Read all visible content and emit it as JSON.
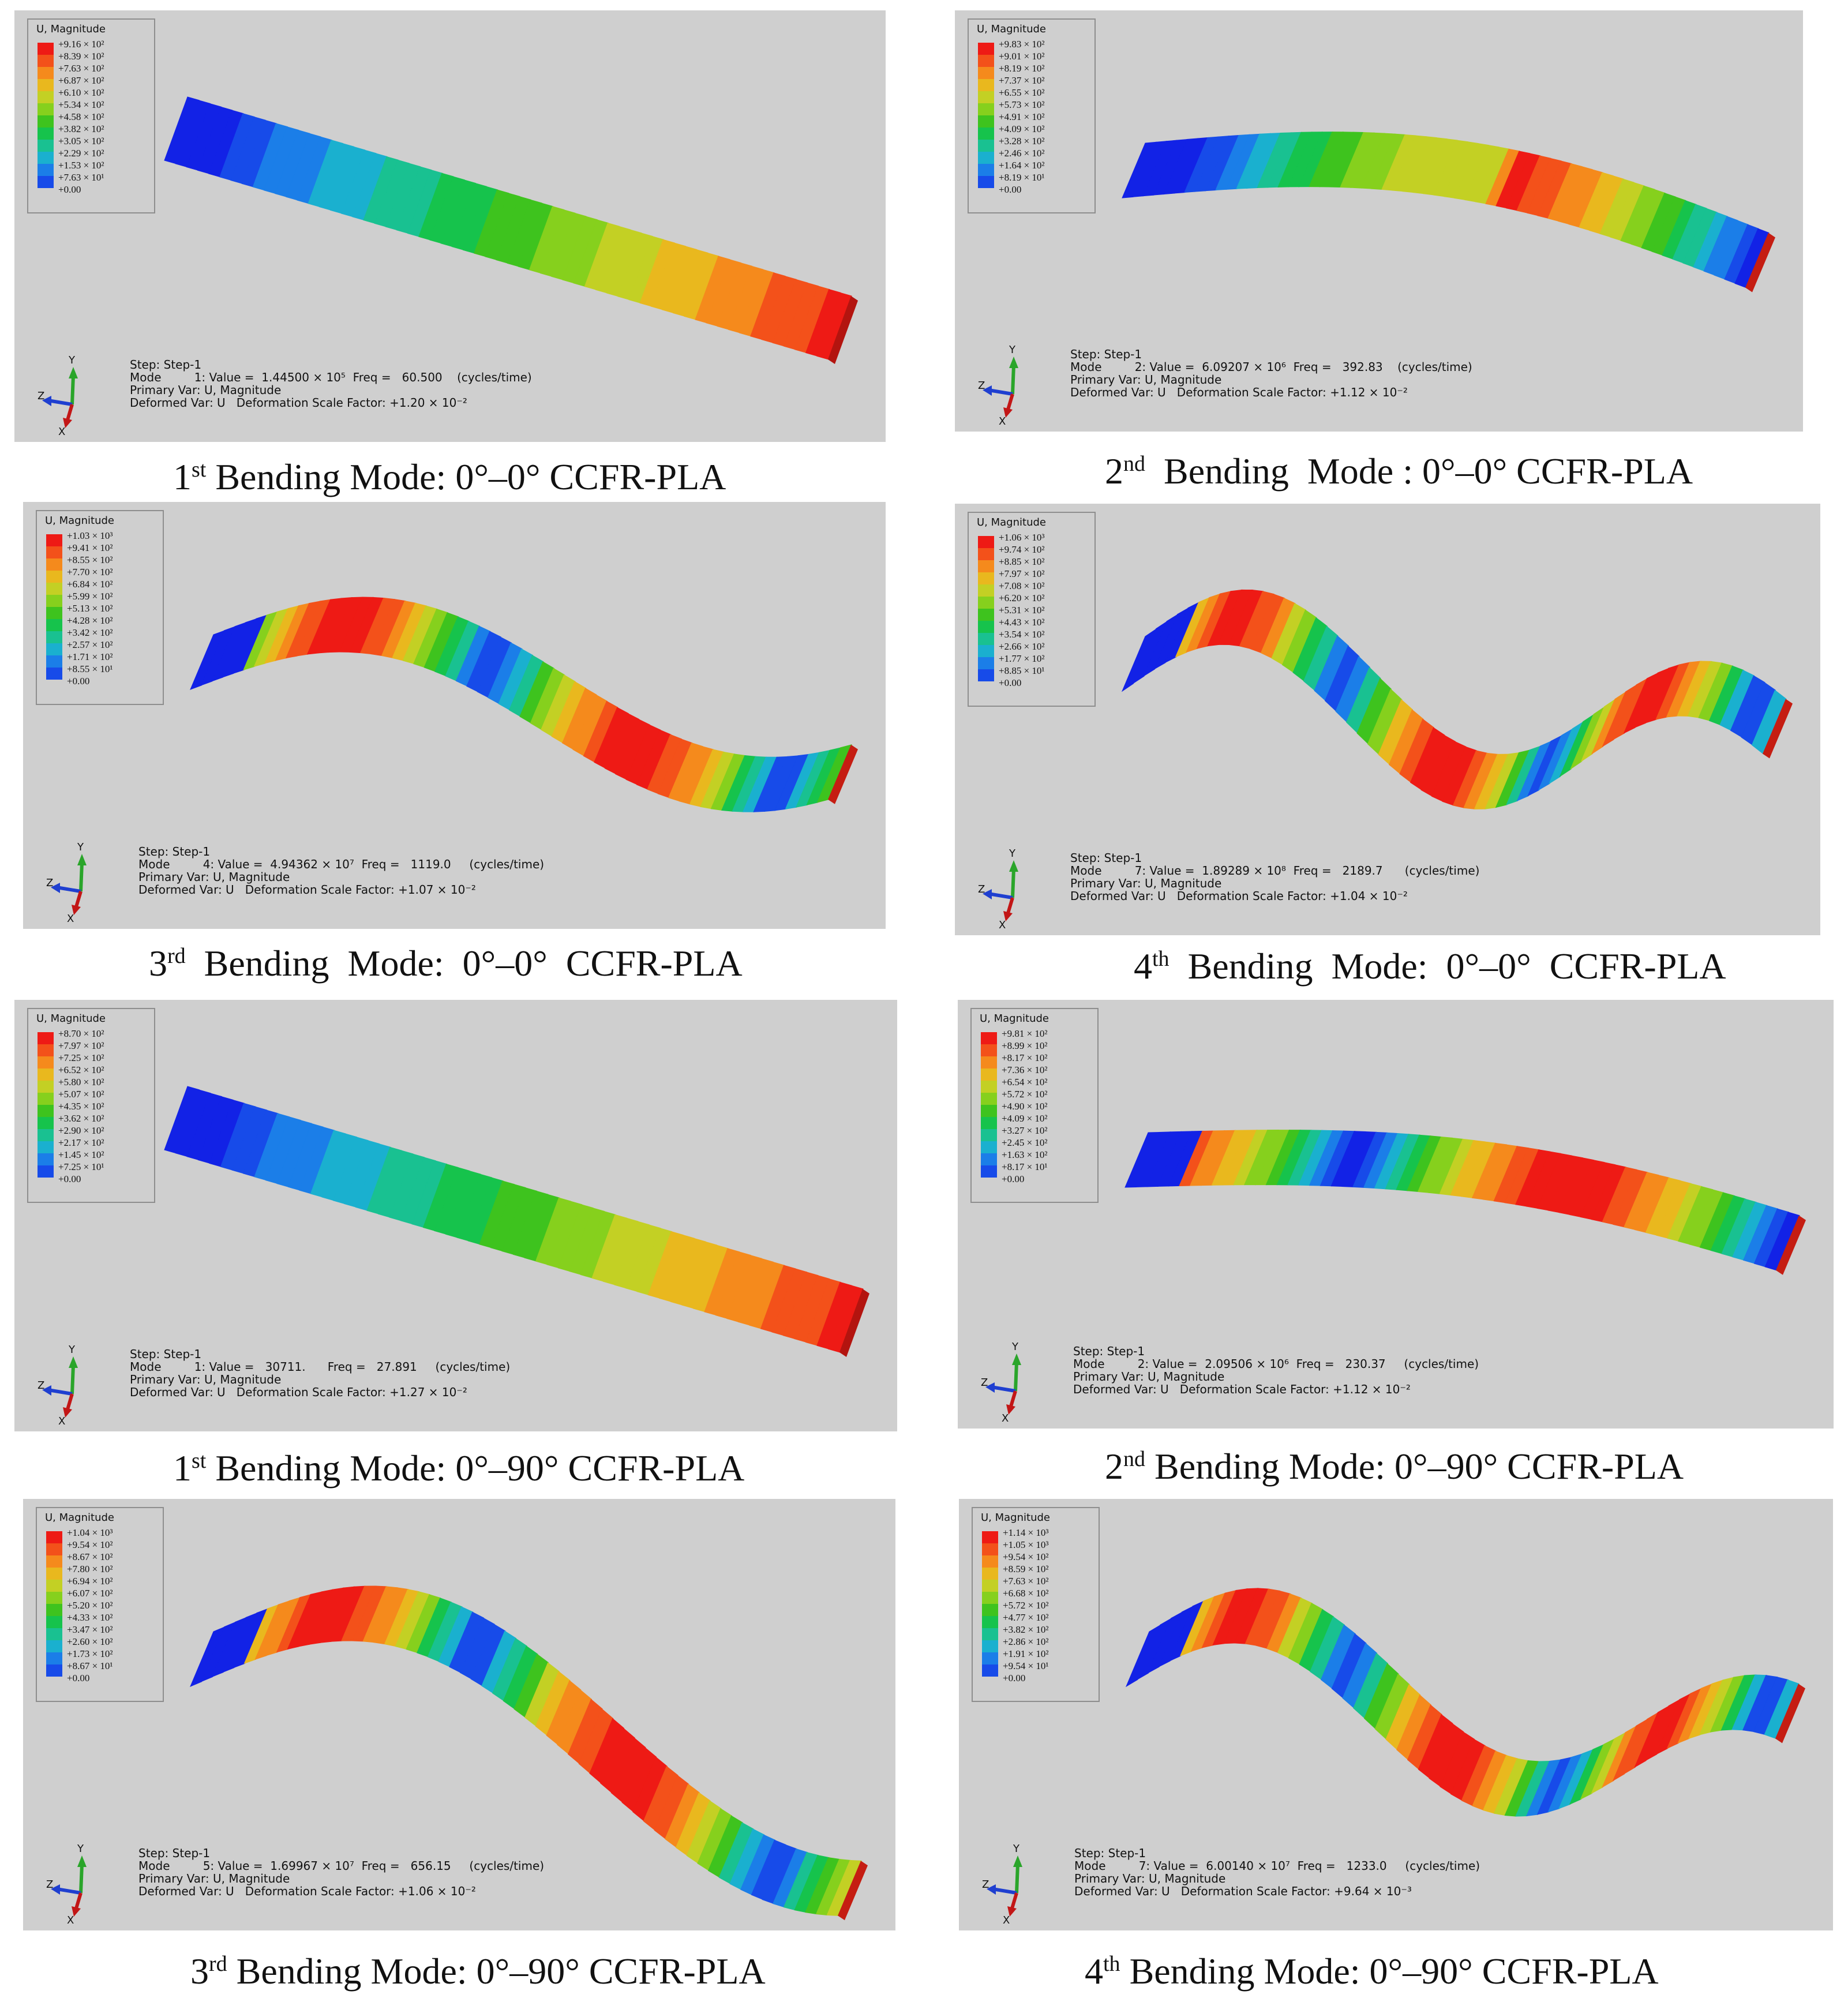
{
  "legend_title": "U, Magnitude",
  "legend_colors": [
    "#ee1a15",
    "#f3511a",
    "#f58a1c",
    "#e9b81e",
    "#c3d024",
    "#86d01d",
    "#3ec31e",
    "#16c34c",
    "#19c191",
    "#1ab0cf",
    "#1b7ee8",
    "#174be9",
    "#1222e6"
  ],
  "panels": [
    {
      "legend": [
        "+9.16 × 10²",
        "+8.39 × 10²",
        "+7.63 × 10²",
        "+6.87 × 10²",
        "+6.10 × 10²",
        "+5.34 × 10²",
        "+4.58 × 10²",
        "+3.82 × 10²",
        "+3.05 × 10²",
        "+2.29 × 10²",
        "+1.53 × 10²",
        "+7.63 × 10¹",
        "+0.00"
      ],
      "step": "Step: Step-1",
      "mode": "Mode         1: Value =  1.44500 × 10⁵  Freq =   60.500    (cycles/time)",
      "primary": "Primary Var: U, Magnitude",
      "deformed": "Deformed Var: U   Deformation Scale Factor: +1.20 × 10⁻²",
      "caption_num": "1",
      "caption_sup": "st",
      "caption_text": " Bending Mode: 0°–0° CCFR-PLA"
    },
    {
      "legend": [
        "+9.83 × 10²",
        "+9.01 × 10²",
        "+8.19 × 10²",
        "+7.37 × 10²",
        "+6.55 × 10²",
        "+5.73 × 10²",
        "+4.91 × 10²",
        "+4.09 × 10²",
        "+3.28 × 10²",
        "+2.46 × 10²",
        "+1.64 × 10²",
        "+8.19 × 10¹",
        "+0.00"
      ],
      "step": "Step: Step-1",
      "mode": "Mode         2: Value =  6.09207 × 10⁶  Freq =   392.83    (cycles/time)",
      "primary": "Primary Var: U, Magnitude",
      "deformed": "Deformed Var: U   Deformation Scale Factor: +1.12 × 10⁻²",
      "caption_num": "2",
      "caption_sup": "nd",
      "caption_text": "  Bending  Mode : 0°–0° CCFR-PLA"
    },
    {
      "legend": [
        "+1.03 × 10³",
        "+9.41 × 10²",
        "+8.55 × 10²",
        "+7.70 × 10²",
        "+6.84 × 10²",
        "+5.99 × 10²",
        "+5.13 × 10²",
        "+4.28 × 10²",
        "+3.42 × 10²",
        "+2.57 × 10²",
        "+1.71 × 10²",
        "+8.55 × 10¹",
        "+0.00"
      ],
      "step": "Step: Step-1",
      "mode": "Mode         4: Value =  4.94362 × 10⁷  Freq =   1119.0     (cycles/time)",
      "primary": "Primary Var: U, Magnitude",
      "deformed": "Deformed Var: U   Deformation Scale Factor: +1.07 × 10⁻²",
      "caption_num": "3",
      "caption_sup": "rd",
      "caption_text": "  Bending  Mode:  0°–0°  CCFR-PLA"
    },
    {
      "legend": [
        "+1.06 × 10³",
        "+9.74 × 10²",
        "+8.85 × 10²",
        "+7.97 × 10²",
        "+7.08 × 10²",
        "+6.20 × 10²",
        "+5.31 × 10²",
        "+4.43 × 10²",
        "+3.54 × 10²",
        "+2.66 × 10²",
        "+1.77 × 10²",
        "+8.85 × 10¹",
        "+0.00"
      ],
      "step": "Step: Step-1",
      "mode": "Mode         7: Value =  1.89289 × 10⁸  Freq =   2189.7      (cycles/time)",
      "primary": "Primary Var: U, Magnitude",
      "deformed": "Deformed Var: U   Deformation Scale Factor: +1.04 × 10⁻²",
      "caption_num": "4",
      "caption_sup": "th",
      "caption_text": "  Bending  Mode:  0°–0°  CCFR-PLA"
    },
    {
      "legend": [
        "+8.70 × 10²",
        "+7.97 × 10²",
        "+7.25 × 10²",
        "+6.52 × 10²",
        "+5.80 × 10²",
        "+5.07 × 10²",
        "+4.35 × 10²",
        "+3.62 × 10²",
        "+2.90 × 10²",
        "+2.17 × 10²",
        "+1.45 × 10²",
        "+7.25 × 10¹",
        "+0.00"
      ],
      "step": "Step: Step-1",
      "mode": "Mode         1: Value =   30711.      Freq =   27.891     (cycles/time)",
      "primary": "Primary Var: U, Magnitude",
      "deformed": "Deformed Var: U   Deformation Scale Factor: +1.27 × 10⁻²",
      "caption_num": "1",
      "caption_sup": "st",
      "caption_text": " Bending Mode: 0°–90° CCFR-PLA"
    },
    {
      "legend": [
        "+9.81 × 10²",
        "+8.99 × 10²",
        "+8.17 × 10²",
        "+7.36 × 10²",
        "+6.54 × 10²",
        "+5.72 × 10²",
        "+4.90 × 10²",
        "+4.09 × 10²",
        "+3.27 × 10²",
        "+2.45 × 10²",
        "+1.63 × 10²",
        "+8.17 × 10¹",
        "+0.00"
      ],
      "step": "Step: Step-1",
      "mode": "Mode         2: Value =  2.09506 × 10⁶  Freq =   230.37     (cycles/time)",
      "primary": "Primary Var: U, Magnitude",
      "deformed": "Deformed Var: U   Deformation Scale Factor: +1.12 × 10⁻²",
      "caption_num": "2",
      "caption_sup": "nd",
      "caption_text": " Bending Mode: 0°–90° CCFR-PLA"
    },
    {
      "legend": [
        "+1.04 × 10³",
        "+9.54 × 10²",
        "+8.67 × 10²",
        "+7.80 × 10²",
        "+6.94 × 10²",
        "+6.07 × 10²",
        "+5.20 × 10²",
        "+4.33 × 10²",
        "+3.47 × 10²",
        "+2.60 × 10²",
        "+1.73 × 10²",
        "+8.67 × 10¹",
        "+0.00"
      ],
      "step": "Step: Step-1",
      "mode": "Mode         5: Value =  1.69967 × 10⁷  Freq =   656.15     (cycles/time)",
      "primary": "Primary Var: U, Magnitude",
      "deformed": "Deformed Var: U   Deformation Scale Factor: +1.06 × 10⁻²",
      "caption_num": "3",
      "caption_sup": "rd",
      "caption_text": " Bending Mode: 0°–90° CCFR-PLA"
    },
    {
      "legend": [
        "+1.14 × 10³",
        "+1.05 × 10³",
        "+9.54 × 10²",
        "+8.59 × 10²",
        "+7.63 × 10²",
        "+6.68 × 10²",
        "+5.72 × 10²",
        "+4.77 × 10²",
        "+3.82 × 10²",
        "+2.86 × 10²",
        "+1.91 × 10²",
        "+9.54 × 10¹",
        "+0.00"
      ],
      "step": "Step: Step-1",
      "mode": "Mode         7: Value =  6.00140 × 10⁷  Freq =   1233.0     (cycles/time)",
      "primary": "Primary Var: U, Magnitude",
      "deformed": "Deformed Var: U   Deformation Scale Factor: +9.64 × 10⁻³",
      "caption_num": "4",
      "caption_sup": "th",
      "caption_text": " Bending Mode: 0°–90° CCFR-PLA"
    }
  ],
  "axis_labels": {
    "x": "X",
    "y": "Y",
    "z": "Z"
  }
}
